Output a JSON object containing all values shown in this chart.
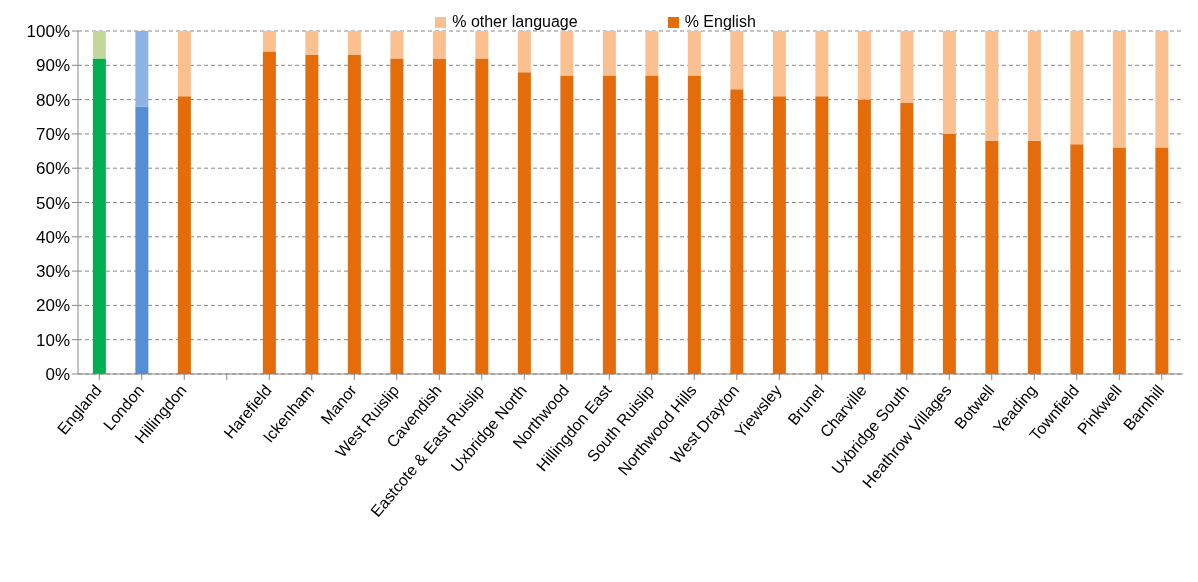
{
  "chart_data": {
    "type": "bar",
    "stacked": true,
    "categories": [
      "England",
      "London",
      "Hillingdon",
      null,
      "Harefield",
      "Ickenham",
      "Manor",
      "West Ruislip",
      "Cavendish",
      "Eastcote & East Ruislip",
      "Uxbridge North",
      "Northwood",
      "Hillingdon East",
      "South Ruislip",
      "Northwood Hills",
      "West Drayton",
      "Yiewsley",
      "Brunel",
      "Charville",
      "Uxbridge South",
      "Heathrow Villages",
      "Botwell",
      "Yeading",
      "Townfield",
      "Pinkwell",
      "Barnhill"
    ],
    "series": [
      {
        "name": "% English",
        "color": "#e46c0a",
        "colors": [
          "#00b050",
          "#558ed5",
          "#e46c0a",
          null,
          "#e46c0a",
          "#e46c0a",
          "#e46c0a",
          "#e46c0a",
          "#e46c0a",
          "#e46c0a",
          "#e46c0a",
          "#e46c0a",
          "#e46c0a",
          "#e46c0a",
          "#e46c0a",
          "#e46c0a",
          "#e46c0a",
          "#e46c0a",
          "#e46c0a",
          "#e46c0a",
          "#e46c0a",
          "#e46c0a",
          "#e46c0a",
          "#e46c0a",
          "#e46c0a",
          "#e46c0a"
        ],
        "values": [
          92,
          78,
          81,
          null,
          94,
          93,
          93,
          92,
          92,
          92,
          88,
          87,
          87,
          87,
          87,
          83,
          81,
          81,
          80,
          79,
          70,
          68,
          68,
          67,
          66,
          66
        ]
      },
      {
        "name": "% other language",
        "color": "#fac090",
        "colors": [
          "#c3d69b",
          "#8eb4e3",
          "#fac090",
          null,
          "#fac090",
          "#fac090",
          "#fac090",
          "#fac090",
          "#fac090",
          "#fac090",
          "#fac090",
          "#fac090",
          "#fac090",
          "#fac090",
          "#fac090",
          "#fac090",
          "#fac090",
          "#fac090",
          "#fac090",
          "#fac090",
          "#fac090",
          "#fac090",
          "#fac090",
          "#fac090",
          "#fac090",
          "#fac090"
        ],
        "values": [
          8,
          22,
          19,
          null,
          6,
          7,
          7,
          8,
          8,
          8,
          12,
          13,
          13,
          13,
          13,
          17,
          19,
          19,
          20,
          21,
          30,
          32,
          32,
          33,
          34,
          34
        ]
      }
    ],
    "ylim": [
      0,
      100
    ],
    "yticks": [
      {
        "value": 0,
        "label": "0%"
      },
      {
        "value": 10,
        "label": "10%"
      },
      {
        "value": 20,
        "label": "20%"
      },
      {
        "value": 30,
        "label": "30%"
      },
      {
        "value": 40,
        "label": "40%"
      },
      {
        "value": 50,
        "label": "50%"
      },
      {
        "value": 60,
        "label": "60%"
      },
      {
        "value": 70,
        "label": "70%"
      },
      {
        "value": 80,
        "label": "80%"
      },
      {
        "value": 90,
        "label": "90%"
      },
      {
        "value": 100,
        "label": "100%"
      }
    ],
    "grid": "y",
    "legend": "top"
  }
}
